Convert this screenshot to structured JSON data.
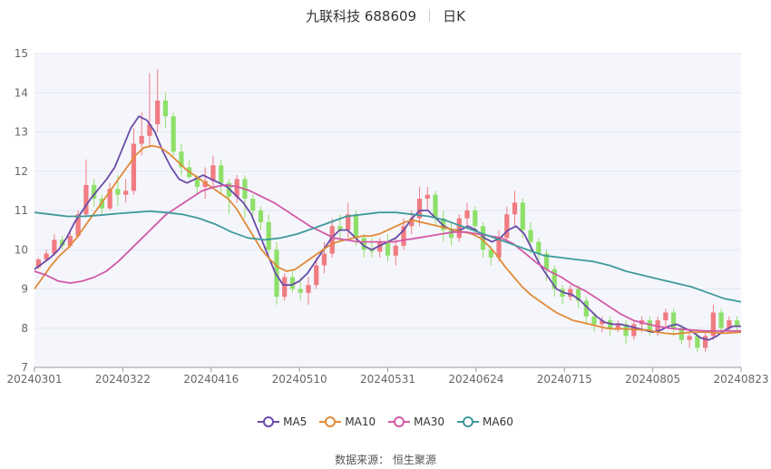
{
  "header": {
    "title": "九联科技 688609",
    "subtitle": "日K"
  },
  "source": {
    "label": "数据来源：",
    "value": "恒生聚源"
  },
  "legend": [
    {
      "name": "MA5",
      "color": "#6a4ba8"
    },
    {
      "name": "MA10",
      "color": "#e08a36"
    },
    {
      "name": "MA30",
      "color": "#d25aa6"
    },
    {
      "name": "MA60",
      "color": "#3f9a9b"
    }
  ],
  "chart_data": {
    "type": "candlestick",
    "up_color": "#f07c82",
    "down_color": "#8fe06a",
    "ylim": [
      7,
      15
    ],
    "yticks": [
      7,
      8,
      9,
      10,
      11,
      12,
      13,
      14,
      15
    ],
    "xticks": [
      "20240301",
      "20240322",
      "20240416",
      "20240510",
      "20240531",
      "20240624",
      "20240715",
      "20240805",
      "20240823"
    ],
    "grid": true,
    "legend_position": "bottom",
    "candles": [
      [
        9.55,
        9.75,
        9.5,
        9.8
      ],
      [
        9.75,
        9.9,
        9.7,
        10.0
      ],
      [
        9.9,
        10.25,
        9.85,
        10.4
      ],
      [
        10.25,
        10.1,
        10.0,
        10.35
      ],
      [
        10.1,
        10.35,
        10.05,
        10.5
      ],
      [
        10.35,
        10.9,
        10.3,
        11.0
      ],
      [
        10.9,
        11.65,
        10.85,
        12.3
      ],
      [
        11.65,
        11.3,
        11.1,
        11.8
      ],
      [
        11.3,
        11.05,
        10.9,
        11.4
      ],
      [
        11.05,
        11.55,
        11.0,
        11.7
      ],
      [
        11.55,
        11.4,
        11.1,
        11.9
      ],
      [
        11.4,
        11.5,
        11.2,
        11.8
      ],
      [
        11.5,
        12.7,
        11.4,
        13.1
      ],
      [
        12.7,
        12.9,
        12.4,
        13.5
      ],
      [
        12.9,
        13.2,
        12.6,
        14.5
      ],
      [
        13.2,
        13.8,
        13.0,
        14.6
      ],
      [
        13.8,
        13.4,
        13.1,
        14.0
      ],
      [
        13.4,
        12.5,
        12.4,
        13.5
      ],
      [
        12.5,
        12.1,
        11.9,
        12.7
      ],
      [
        12.1,
        11.85,
        11.8,
        12.3
      ],
      [
        11.85,
        11.6,
        11.4,
        11.9
      ],
      [
        11.6,
        11.75,
        11.3,
        12.1
      ],
      [
        11.75,
        12.15,
        11.6,
        12.4
      ],
      [
        12.15,
        11.7,
        11.4,
        12.3
      ],
      [
        11.7,
        11.35,
        10.9,
        11.8
      ],
      [
        11.35,
        11.8,
        11.2,
        11.9
      ],
      [
        11.8,
        11.3,
        10.8,
        11.9
      ],
      [
        11.3,
        11.0,
        10.8,
        11.4
      ],
      [
        11.0,
        10.7,
        10.5,
        11.1
      ],
      [
        10.7,
        10.0,
        9.9,
        10.9
      ],
      [
        10.0,
        8.8,
        8.6,
        10.2
      ],
      [
        8.8,
        9.3,
        8.7,
        9.4
      ],
      [
        9.3,
        9.0,
        8.9,
        9.5
      ],
      [
        9.0,
        8.9,
        8.7,
        9.3
      ],
      [
        8.9,
        9.1,
        8.6,
        9.3
      ],
      [
        9.1,
        9.6,
        9.0,
        9.8
      ],
      [
        9.6,
        9.9,
        9.4,
        10.2
      ],
      [
        9.9,
        10.6,
        9.8,
        10.8
      ],
      [
        10.6,
        10.5,
        10.2,
        10.9
      ],
      [
        10.5,
        10.9,
        10.3,
        11.2
      ],
      [
        10.9,
        10.3,
        10.1,
        11.0
      ],
      [
        10.3,
        10.0,
        9.8,
        10.4
      ],
      [
        10.0,
        9.95,
        9.8,
        10.3
      ],
      [
        9.95,
        10.2,
        9.8,
        10.3
      ],
      [
        10.2,
        9.85,
        9.7,
        10.4
      ],
      [
        9.85,
        10.1,
        9.6,
        10.3
      ],
      [
        10.1,
        10.6,
        10.0,
        10.8
      ],
      [
        10.6,
        10.8,
        10.4,
        11.0
      ],
      [
        10.8,
        11.3,
        10.6,
        11.6
      ],
      [
        11.3,
        11.4,
        11.0,
        11.6
      ],
      [
        11.4,
        10.8,
        10.6,
        11.5
      ],
      [
        10.8,
        10.5,
        10.2,
        11.0
      ],
      [
        10.5,
        10.3,
        10.1,
        10.7
      ],
      [
        10.3,
        10.8,
        10.2,
        10.9
      ],
      [
        10.8,
        11.0,
        10.6,
        11.2
      ],
      [
        11.0,
        10.6,
        10.4,
        11.1
      ],
      [
        10.6,
        10.0,
        9.8,
        10.7
      ],
      [
        10.0,
        9.8,
        9.6,
        10.1
      ],
      [
        9.8,
        10.3,
        9.7,
        10.5
      ],
      [
        10.3,
        10.9,
        10.2,
        11.1
      ],
      [
        10.9,
        11.2,
        10.6,
        11.5
      ],
      [
        11.2,
        10.5,
        10.3,
        11.3
      ],
      [
        10.5,
        10.2,
        9.9,
        10.7
      ],
      [
        10.2,
        9.9,
        9.7,
        10.3
      ],
      [
        9.9,
        9.5,
        9.2,
        10.0
      ],
      [
        9.5,
        9.0,
        8.8,
        9.6
      ],
      [
        9.0,
        8.8,
        8.6,
        9.1
      ],
      [
        8.8,
        9.0,
        8.7,
        9.1
      ],
      [
        9.0,
        8.7,
        8.5,
        9.1
      ],
      [
        8.7,
        8.3,
        8.1,
        8.8
      ],
      [
        8.3,
        8.1,
        7.9,
        8.4
      ],
      [
        8.1,
        8.2,
        7.9,
        8.3
      ],
      [
        8.2,
        8.0,
        7.8,
        8.3
      ],
      [
        8.0,
        8.1,
        7.9,
        8.2
      ],
      [
        8.1,
        7.8,
        7.6,
        8.2
      ],
      [
        7.8,
        8.1,
        7.7,
        8.2
      ],
      [
        8.1,
        8.2,
        7.9,
        8.3
      ],
      [
        8.2,
        7.9,
        7.8,
        8.3
      ],
      [
        7.9,
        8.2,
        7.8,
        8.3
      ],
      [
        8.2,
        8.4,
        8.0,
        8.5
      ],
      [
        8.4,
        8.0,
        7.8,
        8.5
      ],
      [
        8.0,
        7.7,
        7.6,
        8.1
      ],
      [
        7.7,
        7.8,
        7.5,
        7.9
      ],
      [
        7.8,
        7.5,
        7.4,
        7.9
      ],
      [
        7.5,
        7.8,
        7.4,
        7.9
      ],
      [
        7.8,
        8.4,
        7.7,
        8.6
      ],
      [
        8.4,
        8.0,
        7.9,
        8.5
      ],
      [
        8.0,
        8.2,
        7.9,
        8.3
      ],
      [
        8.2,
        8.05,
        7.9,
        8.3
      ]
    ],
    "series": [
      {
        "name": "MA5",
        "values": [
          9.5,
          9.65,
          9.8,
          10.0,
          10.3,
          10.7,
          11.0,
          11.3,
          11.55,
          11.8,
          12.1,
          12.6,
          13.1,
          13.4,
          13.3,
          13.0,
          12.5,
          12.1,
          11.8,
          11.7,
          11.8,
          11.9,
          11.8,
          11.7,
          11.6,
          11.4,
          11.2,
          10.9,
          10.4,
          9.9,
          9.4,
          9.1,
          9.1,
          9.2,
          9.4,
          9.7,
          10.0,
          10.3,
          10.5,
          10.5,
          10.3,
          10.1,
          10.0,
          10.1,
          10.2,
          10.3,
          10.5,
          10.8,
          11.0,
          11.0,
          10.8,
          10.6,
          10.5,
          10.5,
          10.6,
          10.5,
          10.3,
          10.2,
          10.3,
          10.5,
          10.6,
          10.4,
          10.0,
          9.6,
          9.3,
          9.0,
          8.9,
          8.85,
          8.7,
          8.5,
          8.3,
          8.15,
          8.1,
          8.1,
          8.05,
          8.0,
          7.95,
          7.9,
          7.95,
          8.05,
          8.1,
          8.0,
          7.9,
          7.75,
          7.7,
          7.8,
          7.95,
          8.05,
          8.05
        ]
      },
      {
        "name": "MA10",
        "values": [
          9.0,
          9.3,
          9.6,
          9.85,
          10.05,
          10.3,
          10.6,
          10.9,
          11.2,
          11.5,
          11.8,
          12.1,
          12.4,
          12.6,
          12.65,
          12.6,
          12.45,
          12.25,
          12.05,
          11.9,
          11.75,
          11.6,
          11.45,
          11.3,
          11.05,
          10.7,
          10.35,
          10.0,
          9.75,
          9.55,
          9.45,
          9.5,
          9.65,
          9.8,
          9.95,
          10.1,
          10.2,
          10.25,
          10.3,
          10.35,
          10.35,
          10.4,
          10.5,
          10.6,
          10.7,
          10.75,
          10.7,
          10.65,
          10.6,
          10.55,
          10.5,
          10.45,
          10.4,
          10.3,
          10.1,
          9.85,
          9.55,
          9.3,
          9.05,
          8.85,
          8.7,
          8.55,
          8.4,
          8.3,
          8.2,
          8.15,
          8.1,
          8.05,
          8.0,
          7.98,
          7.98,
          7.97,
          7.96,
          7.95,
          7.9,
          7.87,
          7.85,
          7.87,
          7.9,
          7.9,
          7.9,
          7.88,
          7.87,
          7.88,
          7.9
        ]
      },
      {
        "name": "MA30",
        "values": [
          9.45,
          9.35,
          9.2,
          9.15,
          9.2,
          9.3,
          9.45,
          9.7,
          10.0,
          10.3,
          10.6,
          10.9,
          11.1,
          11.3,
          11.5,
          11.6,
          11.65,
          11.6,
          11.5,
          11.35,
          11.2,
          11.0,
          10.8,
          10.6,
          10.45,
          10.3,
          10.25,
          10.2,
          10.2,
          10.2,
          10.2,
          10.25,
          10.3,
          10.35,
          10.4,
          10.45,
          10.45,
          10.4,
          10.35,
          10.3,
          10.15,
          9.9,
          9.65,
          9.45,
          9.3,
          9.1,
          8.95,
          8.75,
          8.55,
          8.35,
          8.2,
          8.12,
          8.05,
          8.0,
          7.97,
          7.95,
          7.93,
          7.93,
          7.93,
          7.93
        ]
      },
      {
        "name": "MA60",
        "values": [
          10.95,
          10.9,
          10.85,
          10.85,
          10.88,
          10.92,
          10.95,
          10.98,
          10.95,
          10.9,
          10.8,
          10.65,
          10.45,
          10.3,
          10.25,
          10.3,
          10.4,
          10.55,
          10.7,
          10.85,
          10.9,
          10.95,
          10.95,
          10.9,
          10.85,
          10.75,
          10.6,
          10.45,
          10.3,
          10.15,
          10.0,
          9.85,
          9.8,
          9.75,
          9.7,
          9.6,
          9.45,
          9.35,
          9.25,
          9.15,
          9.05,
          8.9,
          8.75,
          8.67
        ]
      }
    ]
  }
}
